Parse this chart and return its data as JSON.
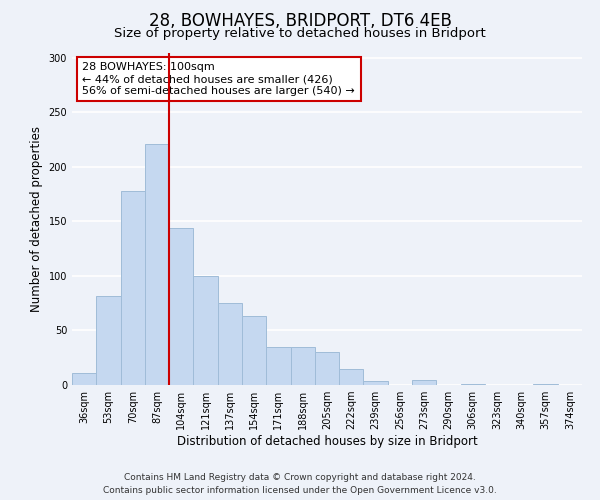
{
  "title": "28, BOWHAYES, BRIDPORT, DT6 4EB",
  "subtitle": "Size of property relative to detached houses in Bridport",
  "xlabel": "Distribution of detached houses by size in Bridport",
  "ylabel": "Number of detached properties",
  "bar_labels": [
    "36sqm",
    "53sqm",
    "70sqm",
    "87sqm",
    "104sqm",
    "121sqm",
    "137sqm",
    "154sqm",
    "171sqm",
    "188sqm",
    "205sqm",
    "222sqm",
    "239sqm",
    "256sqm",
    "273sqm",
    "290sqm",
    "306sqm",
    "323sqm",
    "340sqm",
    "357sqm",
    "374sqm"
  ],
  "bar_values": [
    11,
    82,
    178,
    221,
    144,
    100,
    75,
    63,
    35,
    35,
    30,
    15,
    4,
    0,
    5,
    0,
    1,
    0,
    0,
    1,
    0
  ],
  "bar_color": "#c5d8f0",
  "bar_edge_color": "#a0bcd8",
  "vline_color": "#cc0000",
  "annotation_box_text": "28 BOWHAYES: 100sqm\n← 44% of detached houses are smaller (426)\n56% of semi-detached houses are larger (540) →",
  "annotation_box_color": "#cc0000",
  "annotation_box_fill": "#ffffff",
  "ylim": [
    0,
    305
  ],
  "yticks": [
    0,
    50,
    100,
    150,
    200,
    250,
    300
  ],
  "footer_line1": "Contains HM Land Registry data © Crown copyright and database right 2024.",
  "footer_line2": "Contains public sector information licensed under the Open Government Licence v3.0.",
  "bg_color": "#eef2f9",
  "grid_color": "#ffffff",
  "title_fontsize": 12,
  "subtitle_fontsize": 9.5,
  "axis_label_fontsize": 8.5,
  "tick_fontsize": 7,
  "footer_fontsize": 6.5,
  "ann_fontsize": 8
}
